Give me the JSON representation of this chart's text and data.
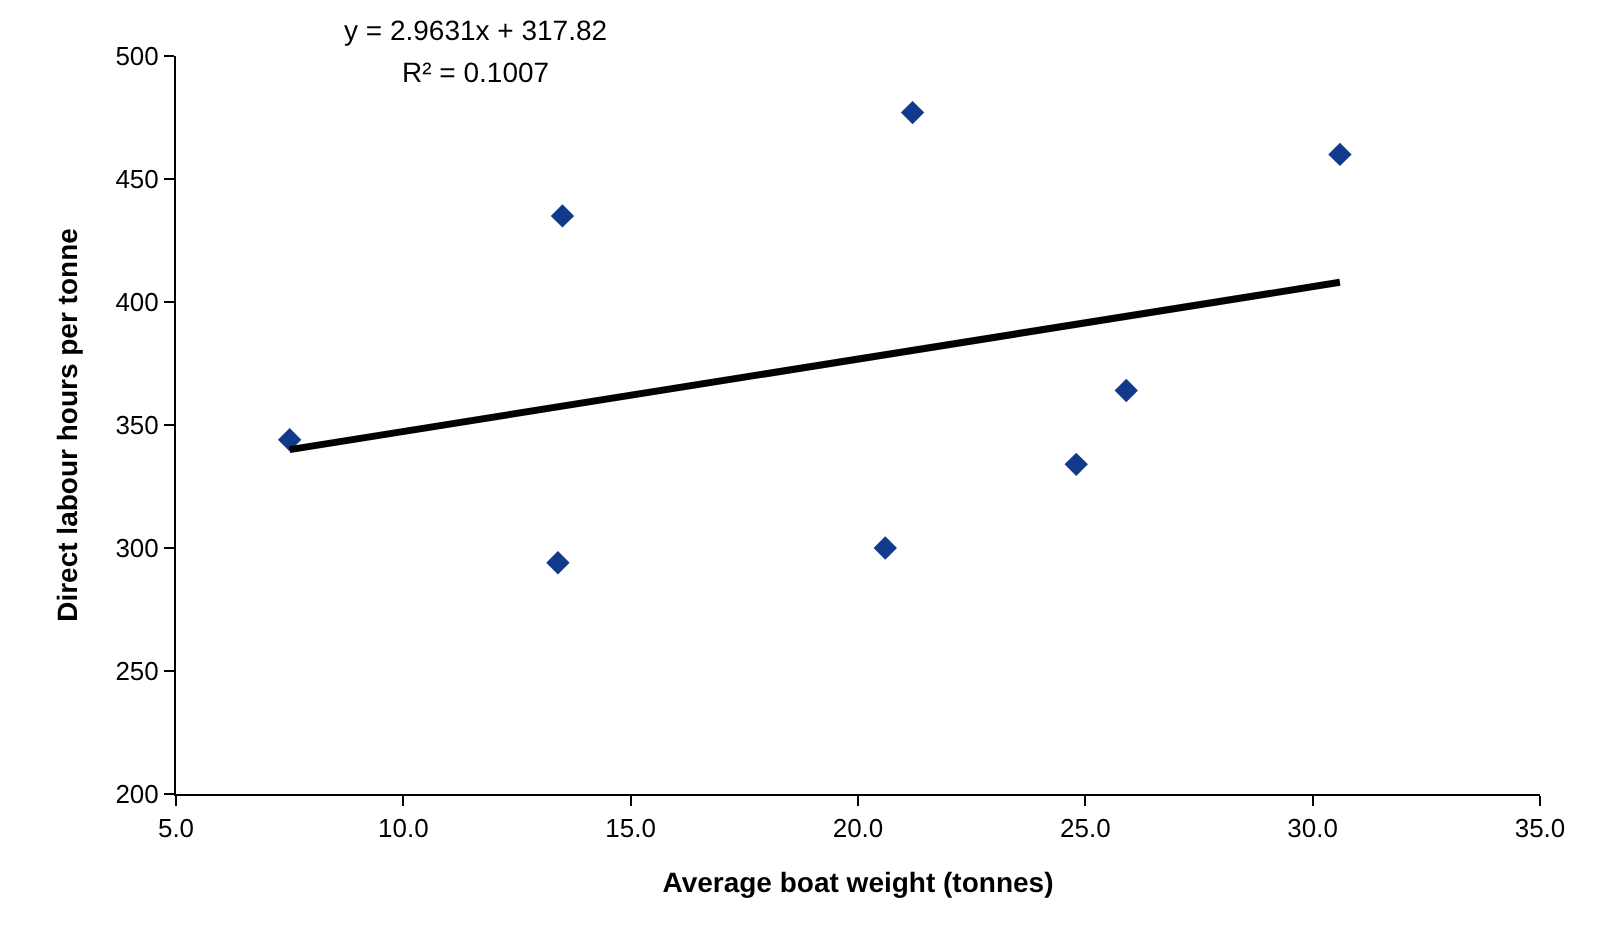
{
  "chart_data": {
    "type": "scatter",
    "xlabel": "Average boat weight (tonnes)",
    "ylabel": "Direct labour hours per tonne",
    "annotations": [
      "y = 2.9631x + 317.82",
      "R² = 0.1007"
    ],
    "series": [
      {
        "color": "#123a8c",
        "marker": "diamond",
        "x": [
          7.5,
          13.5,
          13.4,
          21.2,
          20.6,
          24.8,
          25.9,
          30.6
        ],
        "values": [
          344,
          435,
          294,
          477,
          300,
          334,
          364,
          460
        ]
      },
      {
        "type": "line",
        "color": "#000000",
        "marker": "none",
        "line_style": "solid",
        "x": [
          7.5,
          30.6
        ],
        "values": [
          340,
          408
        ]
      }
    ],
    "xlim": [
      5,
      35
    ],
    "xticks": [
      {
        "value": 5,
        "label": "5.0"
      },
      {
        "value": 10,
        "label": "10.0"
      },
      {
        "value": 15,
        "label": "15.0"
      },
      {
        "value": 20,
        "label": "20.0"
      },
      {
        "value": 25,
        "label": "25.0"
      },
      {
        "value": 30,
        "label": "30.0"
      },
      {
        "value": 35,
        "label": "35.0"
      }
    ],
    "ylim": [
      200,
      500
    ],
    "yticks": [
      200,
      250,
      300,
      350,
      400,
      450,
      500
    ]
  }
}
